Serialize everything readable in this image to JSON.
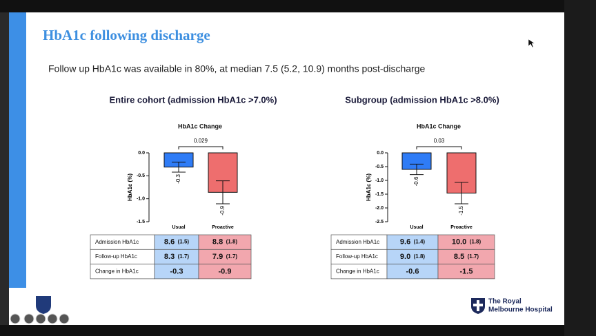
{
  "slide": {
    "title": "HbA1c following discharge",
    "subtitle": "Follow up HbA1c was available in 80%, at median 7.5 (5.2, 10.9) months post-discharge",
    "logo": [
      "The Royal",
      "Melbourne Hospital"
    ]
  },
  "chart_data": [
    {
      "type": "bar",
      "heading": "Entire cohort (admission HbA1c >7.0%)",
      "title": "HbA1c Change",
      "ylabel": "HbA1c (%)",
      "categories": [
        "Usual",
        "Proactive"
      ],
      "values": [
        -0.31,
        -0.86
      ],
      "errors": [
        0.11,
        0.25
      ],
      "value_labels": [
        "-0.3",
        "-0.9"
      ],
      "colors": [
        "#2f7cf6",
        "#ee6e6e"
      ],
      "ylim": [
        -1.5,
        0
      ],
      "yticks": [
        {
          "value": 0,
          "label": "0.0"
        },
        {
          "value": -0.5,
          "label": "-0.5"
        },
        {
          "value": -1,
          "label": "-1.0"
        },
        {
          "value": -1.5,
          "label": "-1.5"
        }
      ],
      "annotation": "0.029",
      "table": {
        "colors": [
          "#ffffff",
          "#b7d5f8",
          "#f2a7ae"
        ],
        "rows": [
          {
            "label": "Admission HbA1c",
            "usual": "8.6",
            "usual_sd": "(1.5)",
            "proactive": "8.8",
            "proactive_sd": "(1.8)"
          },
          {
            "label": "Follow-up HbA1c",
            "usual": "8.3",
            "usual_sd": "(1.7)",
            "proactive": "7.9",
            "proactive_sd": "(1.7)"
          },
          {
            "label": "Change in HbA1c",
            "usual": "-0.3",
            "proactive": "-0.9"
          }
        ]
      }
    },
    {
      "type": "bar",
      "heading": "Subgroup (admission HbA1c >8.0%)",
      "title": "HbA1c Change",
      "ylabel": "HbA1c (%)",
      "categories": [
        "Usual",
        "Proactive"
      ],
      "values": [
        -0.6,
        -1.46
      ],
      "errors": [
        0.19,
        0.39
      ],
      "value_labels": [
        "-0.6",
        "-1.5"
      ],
      "colors": [
        "#2f7cf6",
        "#ee6e6e"
      ],
      "ylim": [
        -2.5,
        0
      ],
      "yticks": [
        {
          "value": 0,
          "label": "0.0"
        },
        {
          "value": -0.5,
          "label": "-0.5"
        },
        {
          "value": -1,
          "label": "-1.0"
        },
        {
          "value": -1.5,
          "label": "-1.5"
        },
        {
          "value": -2,
          "label": "-2.0"
        },
        {
          "value": -2.5,
          "label": "-2.5"
        }
      ],
      "annotation": "0.03",
      "table": {
        "colors": [
          "#ffffff",
          "#b7d5f8",
          "#f2a7ae"
        ],
        "rows": [
          {
            "label": "Admission HbA1c",
            "usual": "9.6",
            "usual_sd": "(1.4)",
            "proactive": "10.0",
            "proactive_sd": "(1.8)"
          },
          {
            "label": "Follow-up HbA1c",
            "usual": "9.0",
            "usual_sd": "(1.8)",
            "proactive": "8.5",
            "proactive_sd": "(1.7)"
          },
          {
            "label": "Change in HbA1c",
            "usual": "-0.6",
            "proactive": "-1.5"
          }
        ]
      }
    }
  ]
}
